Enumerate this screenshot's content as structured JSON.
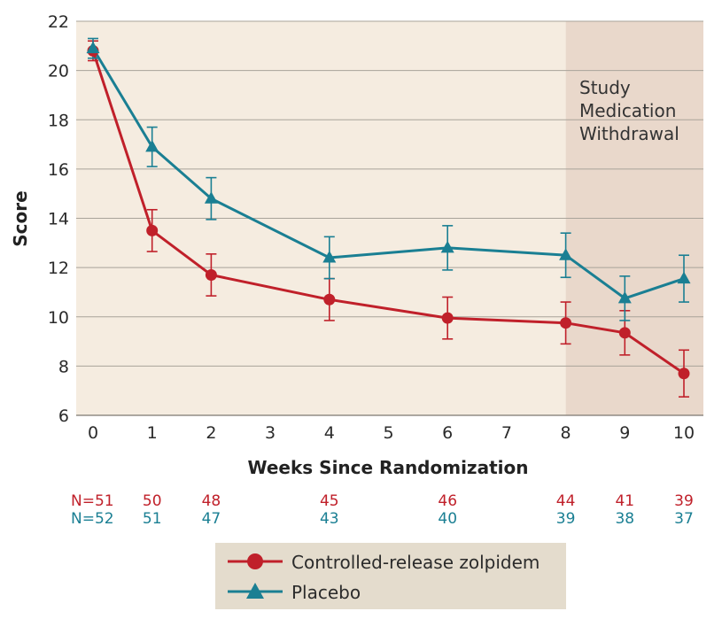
{
  "chart_data": {
    "type": "line",
    "title": "",
    "xlabel": "Weeks Since Randomization",
    "ylabel": "Score",
    "xlim": [
      0,
      10
    ],
    "ylim": [
      6,
      22
    ],
    "x_ticks": [
      0,
      1,
      2,
      3,
      4,
      5,
      6,
      7,
      8,
      9,
      10
    ],
    "y_ticks": [
      6,
      8,
      10,
      12,
      14,
      16,
      18,
      20,
      22
    ],
    "grid": "horizontal",
    "shaded_region": {
      "x_start": 8,
      "x_end": 10,
      "label_lines": [
        "Study",
        "Medication",
        "Withdrawal"
      ]
    },
    "series": [
      {
        "name": "Controlled-release zolpidem",
        "color": "#c0202a",
        "marker": "circle",
        "x": [
          0,
          1,
          2,
          4,
          6,
          8,
          9,
          10
        ],
        "y": [
          20.8,
          13.5,
          11.7,
          10.7,
          9.95,
          9.75,
          9.35,
          7.7
        ],
        "err": [
          0.4,
          0.85,
          0.85,
          0.85,
          0.85,
          0.85,
          0.9,
          0.95
        ],
        "n_label": "N=51",
        "n": [
          "50",
          "48",
          "45",
          "46",
          "44",
          "41",
          "39"
        ]
      },
      {
        "name": "Placebo",
        "color": "#1a7f93",
        "marker": "triangle",
        "x": [
          0,
          1,
          2,
          4,
          6,
          8,
          9,
          10
        ],
        "y": [
          20.9,
          16.9,
          14.8,
          12.4,
          12.8,
          12.5,
          10.75,
          11.55
        ],
        "err": [
          0.4,
          0.8,
          0.85,
          0.85,
          0.9,
          0.9,
          0.9,
          0.95
        ],
        "n_label": "N=52",
        "n": [
          "51",
          "47",
          "43",
          "40",
          "39",
          "38",
          "37"
        ]
      }
    ]
  },
  "legend": {
    "items": [
      {
        "label": "Controlled-release zolpidem"
      },
      {
        "label": "Placebo"
      }
    ]
  }
}
